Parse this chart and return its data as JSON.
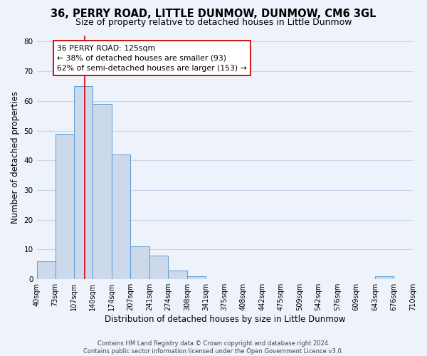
{
  "title": "36, PERRY ROAD, LITTLE DUNMOW, DUNMOW, CM6 3GL",
  "subtitle": "Size of property relative to detached houses in Little Dunmow",
  "xlabel": "Distribution of detached houses by size in Little Dunmow",
  "ylabel": "Number of detached properties",
  "bin_edges": [
    40,
    73,
    107,
    140,
    174,
    207,
    241,
    274,
    308,
    341,
    375,
    408,
    442,
    475,
    509,
    542,
    576,
    609,
    643,
    676,
    710
  ],
  "bar_heights": [
    6,
    49,
    65,
    59,
    42,
    11,
    8,
    3,
    1,
    0,
    0,
    0,
    0,
    0,
    0,
    0,
    0,
    0,
    1,
    0
  ],
  "bar_color": "#ccd9ea",
  "bar_edge_color": "#5b9bd5",
  "vline_x": 125,
  "vline_color": "#cc0000",
  "annotation_title": "36 PERRY ROAD: 125sqm",
  "annotation_line1": "← 38% of detached houses are smaller (93)",
  "annotation_line2": "62% of semi-detached houses are larger (153) →",
  "annotation_box_color": "white",
  "annotation_box_edge_color": "#cc0000",
  "tick_labels": [
    "40sqm",
    "73sqm",
    "107sqm",
    "140sqm",
    "174sqm",
    "207sqm",
    "241sqm",
    "274sqm",
    "308sqm",
    "341sqm",
    "375sqm",
    "408sqm",
    "442sqm",
    "475sqm",
    "509sqm",
    "542sqm",
    "576sqm",
    "609sqm",
    "643sqm",
    "676sqm",
    "710sqm"
  ],
  "ylim": [
    0,
    82
  ],
  "yticks": [
    0,
    10,
    20,
    30,
    40,
    50,
    60,
    70,
    80
  ],
  "footer_line1": "Contains HM Land Registry data © Crown copyright and database right 2024.",
  "footer_line2": "Contains public sector information licensed under the Open Government Licence v3.0.",
  "background_color": "#eef3fb",
  "plot_background_color": "#eef3fb",
  "grid_color": "#c8d4e8",
  "title_fontsize": 10.5,
  "subtitle_fontsize": 9,
  "axis_label_fontsize": 8.5,
  "tick_fontsize": 7,
  "annotation_fontsize": 7.8,
  "footer_fontsize": 6
}
